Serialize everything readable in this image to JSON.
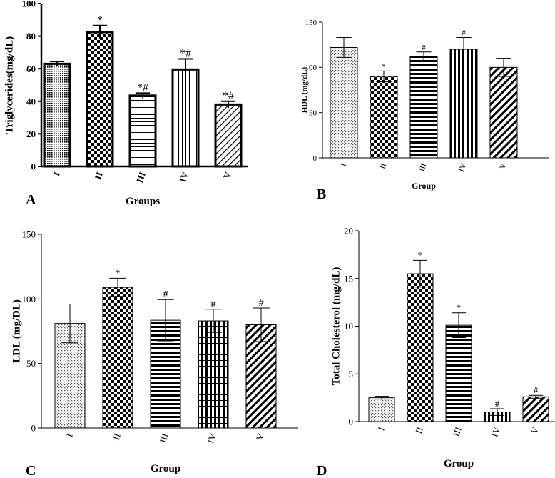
{
  "chart_data": [
    {
      "type": "bar",
      "panel": "A",
      "ylabel": "Triglycerides(mg/dL)",
      "xlabel": "Groups",
      "categories": [
        "I",
        "II",
        "III",
        "IV",
        "V"
      ],
      "values": [
        63,
        82.5,
        43.5,
        59.5,
        38
      ],
      "errors": [
        1.5,
        4,
        1.5,
        6.5,
        2
      ],
      "annotations": [
        "",
        "*",
        "*#",
        "*#",
        "*#"
      ],
      "ylim": [
        0,
        100
      ],
      "yticks": [
        0,
        20,
        40,
        60,
        80,
        100
      ]
    },
    {
      "type": "bar",
      "panel": "B",
      "ylabel": "HDL (mg/dL)",
      "xlabel": "Group",
      "categories": [
        "I",
        "II",
        "III",
        "IV",
        "V"
      ],
      "values": [
        122,
        90,
        112,
        120,
        100
      ],
      "errors": [
        11,
        6,
        5,
        13,
        10
      ],
      "annotations": [
        "",
        "*",
        "#",
        "#",
        ""
      ],
      "ylim": [
        0,
        150
      ],
      "yticks": [
        0,
        50,
        100,
        150
      ]
    },
    {
      "type": "bar",
      "panel": "C",
      "ylabel": "LDL (mg/DL)",
      "xlabel": "Group",
      "categories": [
        "I",
        "II",
        "III",
        "IV",
        "V"
      ],
      "values": [
        81,
        109,
        83.5,
        83,
        80
      ],
      "errors": [
        15,
        7,
        16,
        9,
        13
      ],
      "annotations": [
        "",
        "*",
        "#",
        "#",
        "#"
      ],
      "ylim": [
        0,
        150
      ],
      "yticks": [
        0,
        50,
        100,
        150
      ]
    },
    {
      "type": "bar",
      "panel": "D",
      "ylabel": "Total Cholesterol (mg/dL)",
      "xlabel": "Group",
      "categories": [
        "I",
        "II",
        "III",
        "IV",
        "V"
      ],
      "values": [
        2.5,
        15.5,
        10.1,
        1.0,
        2.6
      ],
      "errors": [
        0.15,
        1.4,
        1.3,
        0.35,
        0.15
      ],
      "annotations": [
        "",
        "*",
        "*",
        "#",
        "#"
      ],
      "ylim": [
        0,
        20
      ],
      "yticks": [
        0,
        5,
        10,
        15,
        20
      ]
    }
  ]
}
